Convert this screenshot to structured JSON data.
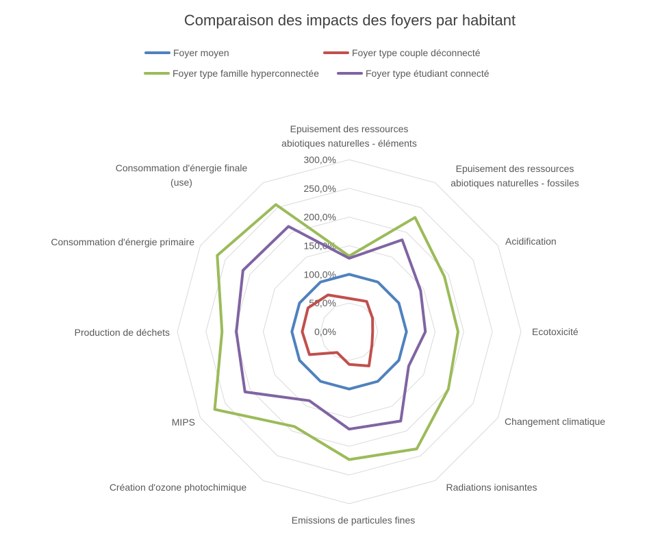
{
  "title": "Comparaison des impacts des foyers par habitant",
  "colors": {
    "grid": "#D9D9D9",
    "text": "#595959",
    "title_text": "#404040",
    "background": "#FFFFFF"
  },
  "legend": [
    {
      "label": "Foyer moyen",
      "color": "#4F81BD"
    },
    {
      "label": "Foyer type couple déconnecté",
      "color": "#C0504D"
    },
    {
      "label": "Foyer type famille hyperconnectée",
      "color": "#9BBB59"
    },
    {
      "label": "Foyer type étudiant connecté",
      "color": "#8064A2"
    }
  ],
  "chart_data": {
    "type": "radar",
    "title": "Comparaison des impacts des foyers par habitant",
    "unit": "%",
    "grid": true,
    "legend_position": "top",
    "radial_axis": {
      "min": 0,
      "max": 300,
      "step": 50,
      "tick_labels": [
        "0,0%",
        "50,0%",
        "100,0%",
        "150,0%",
        "200,0%",
        "250,0%",
        "300,0%"
      ]
    },
    "categories": [
      "Epuisement des ressources abiotiques naturelles - éléments",
      "Epuisement des ressources abiotiques naturelles - fossiles",
      "Acidification",
      "Ecotoxicité",
      "Changement climatique",
      "Radiations ionisantes",
      "Emissions de particules fines",
      "Création d'ozone photochimique",
      "MIPS",
      "Production de déchets",
      "Consommation d'énergie primaire",
      "Consommation d'énergie finale (use)"
    ],
    "series": [
      {
        "name": "Foyer moyen",
        "color": "#4F81BD",
        "values": [
          100,
          100,
          100,
          100,
          100,
          100,
          100,
          100,
          100,
          100,
          100,
          100
        ]
      },
      {
        "name": "Foyer type couple déconnecté",
        "color": "#C0504D",
        "values": [
          58,
          61,
          47,
          41,
          46,
          69,
          57,
          42,
          80,
          82,
          83,
          74
        ]
      },
      {
        "name": "Foyer type famille hyperconnectée",
        "color": "#9BBB59",
        "values": [
          132,
          230,
          192,
          190,
          200,
          236,
          223,
          191,
          271,
          222,
          266,
          256
        ]
      },
      {
        "name": "Foyer type étudiant connecté",
        "color": "#8064A2",
        "values": [
          128,
          185,
          144,
          133,
          120,
          180,
          170,
          139,
          210,
          197,
          214,
          212
        ]
      }
    ]
  }
}
